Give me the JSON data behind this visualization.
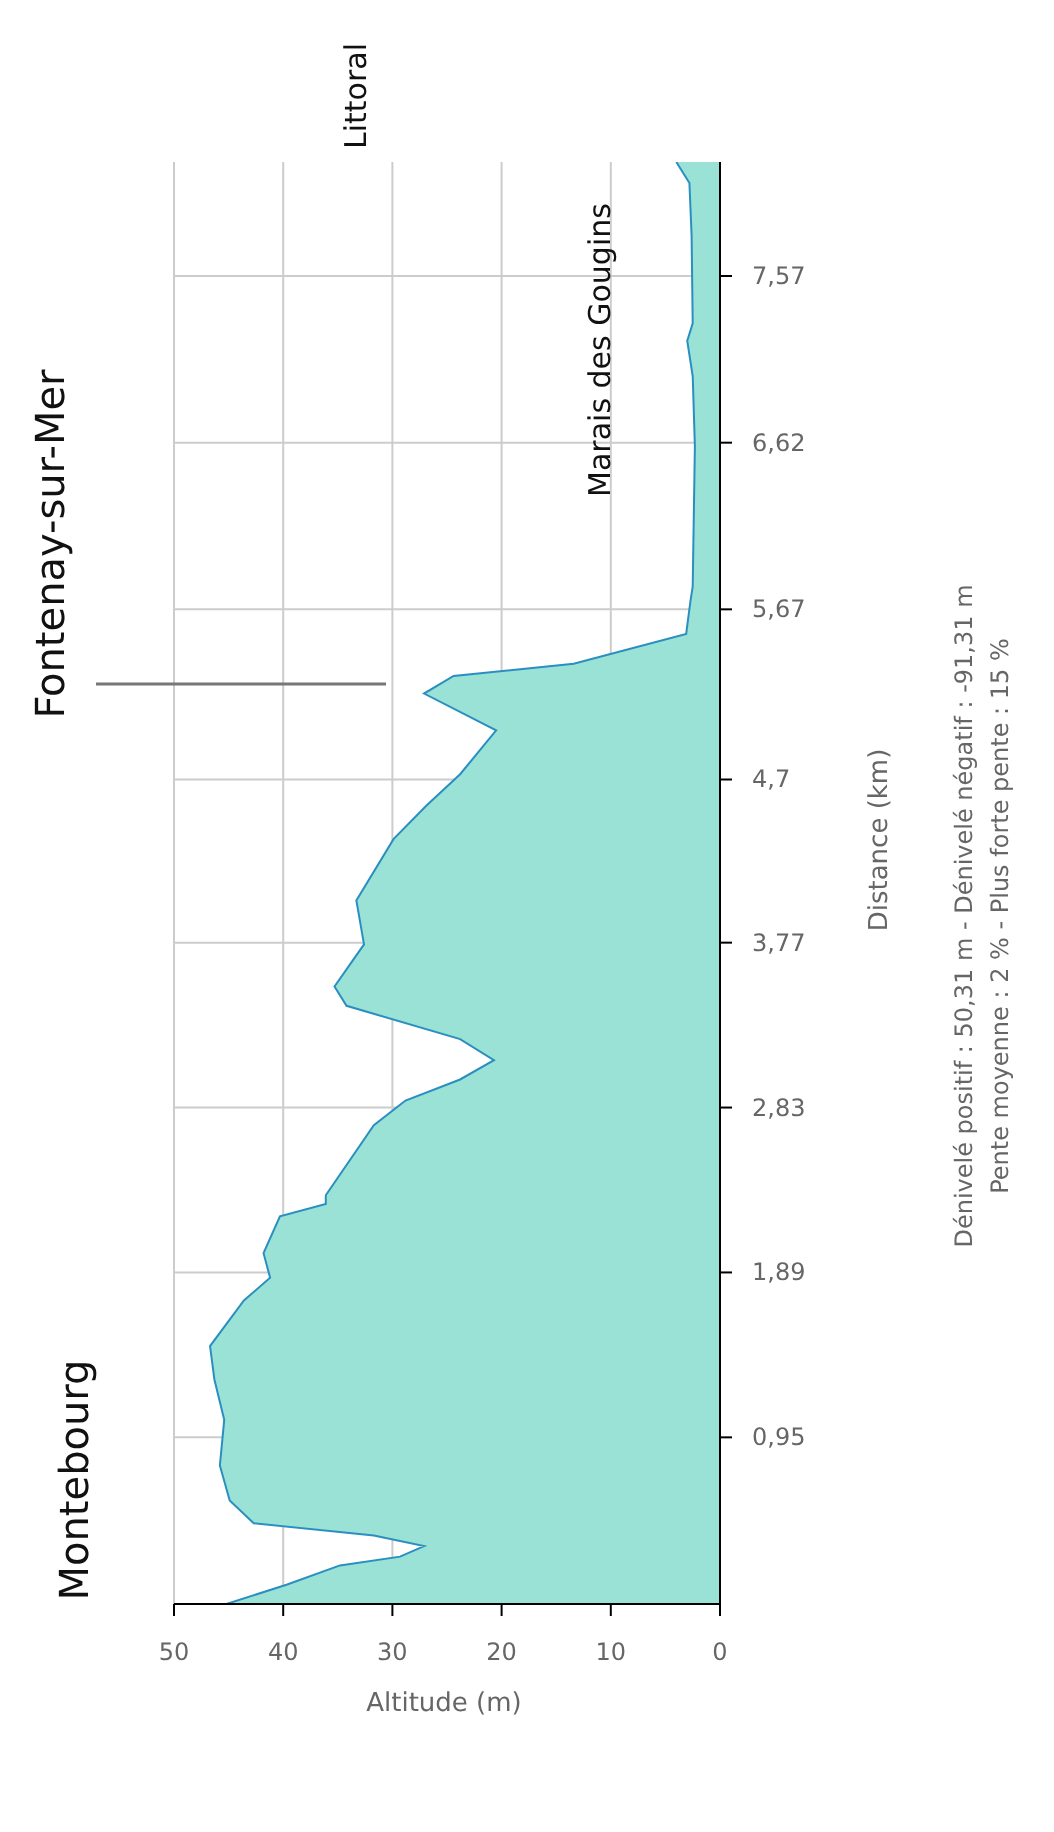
{
  "chart_data": {
    "type": "area",
    "orientation": "horizontal",
    "xlabel": "Altitude (m)",
    "ylabel": "Distance (km)",
    "x": [
      0,
      0.11,
      0.22,
      0.27,
      0.33,
      0.39,
      0.46,
      0.59,
      0.79,
      1.05,
      1.28,
      1.47,
      1.73,
      1.86,
      2.0,
      2.21,
      2.28,
      2.33,
      2.73,
      2.87,
      2.99,
      3.1,
      3.22,
      3.41,
      3.52,
      3.76,
      4.01,
      4.36,
      4.55,
      4.73,
      4.98,
      5.19,
      5.29,
      5.36,
      5.53,
      5.72,
      5.8,
      6.2,
      6.6,
      7.0,
      7.2,
      7.3,
      7.8,
      8.1,
      8.22
    ],
    "series": [
      {
        "color": "#99e2d5",
        "values": [
          45.2,
          39.7,
          34.8,
          29.3,
          27.1,
          31.7,
          42.7,
          44.9,
          45.8,
          45.4,
          46.3,
          46.7,
          43.6,
          41.2,
          41.8,
          40.3,
          36.1,
          36.1,
          31.7,
          28.8,
          23.8,
          20.7,
          23.8,
          34.2,
          35.3,
          32.6,
          33.3,
          29.9,
          26.9,
          23.8,
          20.5,
          27.1,
          24.4,
          13.4,
          3.1,
          2.7,
          2.5,
          2.4,
          2.3,
          2.5,
          3.0,
          2.5,
          2.6,
          2.8,
          4.0
        ]
      }
    ],
    "ylim": [
      0,
      8.22
    ],
    "yticks": [
      {
        "value": 0.95,
        "label": "0,95"
      },
      {
        "value": 1.89,
        "label": "1,89"
      },
      {
        "value": 2.83,
        "label": "2,83"
      },
      {
        "value": 3.77,
        "label": "3,77"
      },
      {
        "value": 4.7,
        "label": "4,7"
      },
      {
        "value": 5.67,
        "label": "5,67"
      },
      {
        "value": 6.62,
        "label": "6,62"
      },
      {
        "value": 7.57,
        "label": "7,57"
      }
    ],
    "xlim": [
      50,
      0
    ],
    "xticks": [
      0,
      10,
      20,
      30,
      40,
      50
    ],
    "grid": true,
    "annotations": [
      "Montebourg",
      "Fontenay-sur-Mer",
      "Marais des Gougins",
      "Littoral",
      "Dénivelé positif : 50,31 m - Dénivelé négatif : -91,31 m",
      "Pente moyenne : 2 % - Plus forte pente : 15 %"
    ]
  }
}
